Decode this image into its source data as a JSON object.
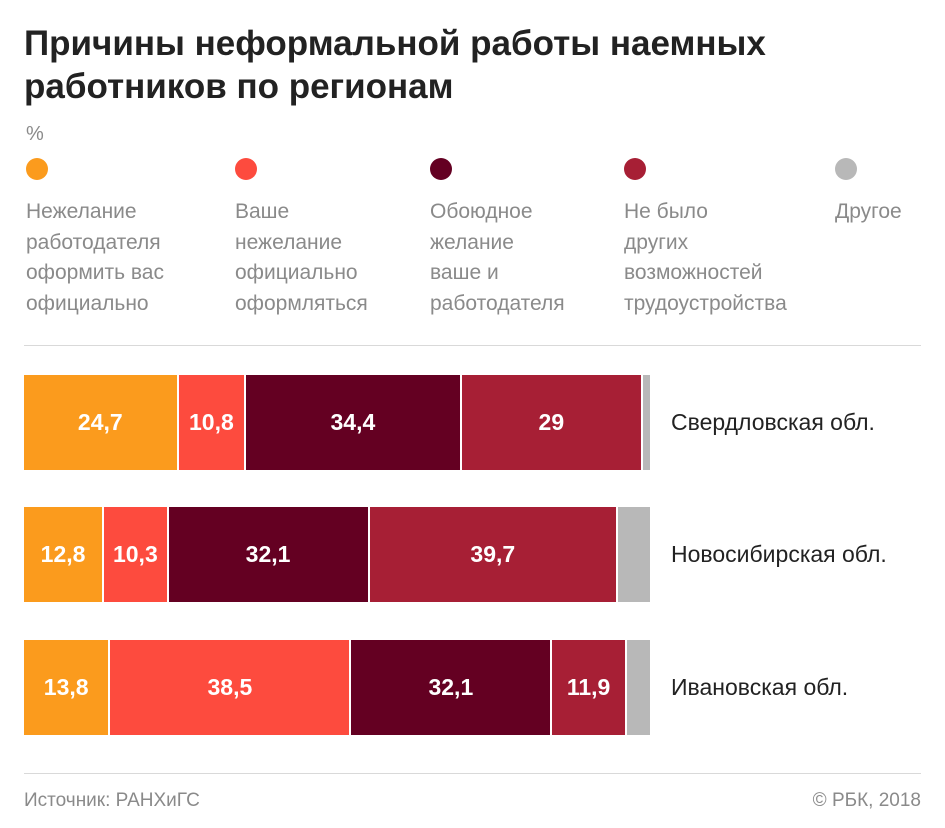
{
  "chart_data": {
    "type": "bar",
    "orientation": "horizontal",
    "stacked": true,
    "title": "Причины неформальной работы наемных работников по регионам",
    "unit": "%",
    "categories": [
      "Свердловская обл.",
      "Новосибирская обл.",
      "Ивановская обл."
    ],
    "series": [
      {
        "name": "Нежелание работодателя оформить вас официально",
        "color": "#fb9b1d",
        "values": [
          24.7,
          12.8,
          13.8
        ],
        "labels": [
          "24,7",
          "12,8",
          "13,8"
        ]
      },
      {
        "name": "Ваше нежелание официально оформляться",
        "color": "#fd4b3e",
        "values": [
          10.8,
          10.3,
          38.5
        ],
        "labels": [
          "10,8",
          "10,3",
          "38,5"
        ]
      },
      {
        "name": "Обоюдное желание ваше и работодателя",
        "color": "#640022",
        "values": [
          34.4,
          32.1,
          32.1
        ],
        "labels": [
          "34,4",
          "32,1",
          "32,1"
        ]
      },
      {
        "name": "Не было других возможностей трудоустройства",
        "color": "#a71f35",
        "values": [
          29,
          39.7,
          11.9
        ],
        "labels": [
          "29",
          "39,7",
          "11,9"
        ]
      },
      {
        "name": "Другое",
        "color": "#b8b8b8",
        "values": [
          1.1,
          5.1,
          3.7
        ],
        "labels": [
          "",
          "",
          ""
        ]
      }
    ],
    "legend_position": "top",
    "grid": false
  },
  "legend_labels": [
    "Нежелание\nработодателя\nоформить вас\nофициально",
    "Ваше\nнежелание\nофициально\nоформляться",
    "Обоюдное\nжелание\nваше и\nработодателя",
    "Не было\nдругих\nвозможностей\nтрудоустройства",
    "Другое"
  ],
  "footer": {
    "source": "Источник: РАНХиГС",
    "copyright": "© РБК, 2018"
  }
}
